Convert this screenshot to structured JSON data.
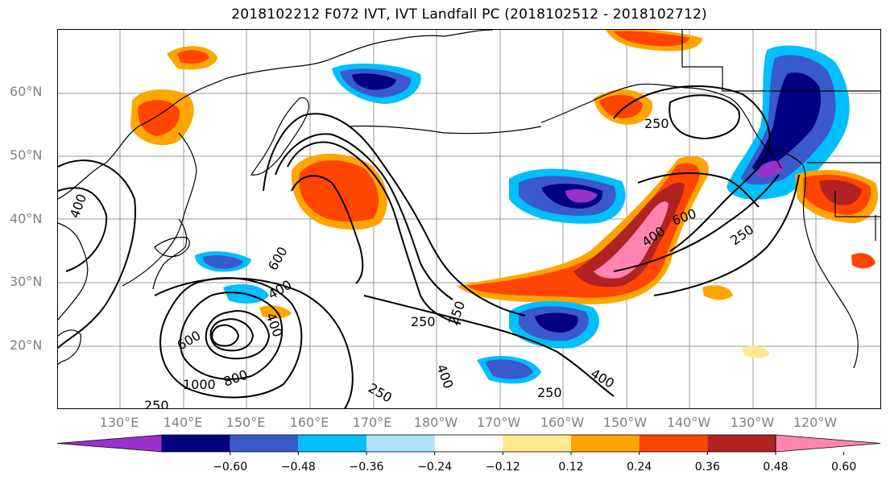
{
  "title": "2018102212 F072 IVT, IVT Landfall PC (2018102512 - 2018102712)",
  "map": {
    "lat_labels": [
      "60°N",
      "50°N",
      "40°N",
      "30°N",
      "20°N"
    ],
    "lon_labels": [
      "130°E",
      "140°E",
      "150°E",
      "160°E",
      "170°E",
      "180°W",
      "170°W",
      "160°W",
      "150°W",
      "140°W",
      "130°W",
      "120°W"
    ],
    "contour_labels": [
      "250",
      "400",
      "600",
      "800",
      "1000"
    ],
    "contour_color": "#000000",
    "coastline_color": "#000000",
    "gridline_color": "#808080"
  },
  "colorbar": {
    "colors": [
      "#9932cc",
      "#000080",
      "#3a5acb",
      "#00bfff",
      "#b0e0ff",
      "#ffffff",
      "#ffe98a",
      "#ffa500",
      "#ff4500",
      "#b22222",
      "#ff85b0"
    ],
    "ticks": [
      "−0.60",
      "−0.48",
      "−0.36",
      "−0.24",
      "−0.12",
      "0.12",
      "0.24",
      "0.36",
      "0.48",
      "0.60"
    ]
  }
}
